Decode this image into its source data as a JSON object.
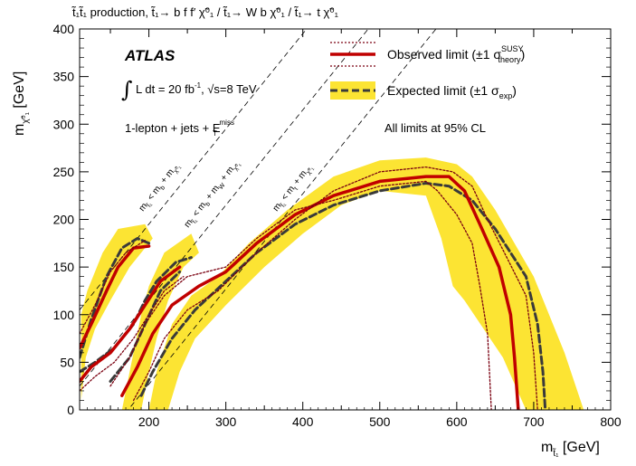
{
  "chart_data": {
    "type": "area",
    "title": "t̃₁t̃₁ production, t̃₁→ b f f′ χ̃⁰₁ / t̃₁→ W b χ̃⁰₁ / t̃₁→ t χ̃⁰₁",
    "experiment": "ATLAS",
    "luminosity_text": "L dt = 20 fb",
    "luminosity_sup": "-1",
    "energy_text": "√s=8 TeV",
    "selection_text": "1-lepton + jets + E",
    "selection_sub": "T",
    "selection_sup": "miss",
    "cl_text": "All limits at 95% CL",
    "xlabel": "m",
    "xlabel_sub": "t̃₁",
    "xlabel_unit": " [GeV]",
    "ylabel": "m",
    "ylabel_sub": "χ̃⁰₁",
    "ylabel_unit": " [GeV]",
    "xlim": [
      110,
      800
    ],
    "ylim": [
      0,
      400
    ],
    "xticks": [
      200,
      300,
      400,
      500,
      600,
      700,
      800
    ],
    "yticks": [
      0,
      50,
      100,
      150,
      200,
      250,
      300,
      350,
      400
    ],
    "legend_position": "top-right",
    "legend": [
      {
        "label": "Observed limit (±1 σ",
        "sup": "SUSY",
        "sub": "theory",
        "close": ")",
        "color": "#c00000"
      },
      {
        "label": "Expected limit (±1 σ",
        "sub": "exp",
        "close": ")",
        "color": "#3a3a3a",
        "band_color": "#fce433"
      }
    ],
    "kinematic_lines": [
      {
        "label": "m",
        "sub": "t̃₁",
        "text": " < m",
        "sub2": "b",
        "text2": " + m",
        "sub3": "χ̃⁰₁",
        "offset": 5
      },
      {
        "label": "m",
        "sub": "t̃₁",
        "text": " < m",
        "sub2": "b",
        "text2": " + m",
        "sub3": "W",
        "text3": " + m",
        "sub4": "χ̃⁰₁",
        "offset": 85
      },
      {
        "label": "m",
        "sub": "t̃₁",
        "text": " < m",
        "sub2": "t",
        "text2": " + m",
        "sub3": "χ̃⁰₁",
        "offset": 173
      }
    ],
    "series": [
      {
        "name": "Expected limit ±1σ band",
        "role": "band",
        "color": "#fce433",
        "polygons": [
          {
            "points": [
              [
                112,
                10
              ],
              [
                112,
                100
              ],
              [
                120,
                125
              ],
              [
                140,
                165
              ],
              [
                160,
                190
              ],
              [
                195,
                195
              ],
              [
                205,
                180
              ],
              [
                175,
                150
              ],
              [
                150,
                115
              ],
              [
                130,
                85
              ],
              [
                118,
                55
              ]
            ]
          },
          {
            "points": [
              [
                165,
                0
              ],
              [
                175,
                40
              ],
              [
                190,
                100
              ],
              [
                200,
                130
              ],
              [
                220,
                165
              ],
              [
                255,
                185
              ],
              [
                265,
                165
              ],
              [
                245,
                150
              ],
              [
                225,
                115
              ],
              [
                210,
                75
              ],
              [
                200,
                40
              ],
              [
                190,
                0
              ]
            ]
          },
          {
            "points": [
              [
                200,
                0
              ],
              [
                210,
                40
              ],
              [
                230,
                90
              ],
              [
                255,
                120
              ],
              [
                290,
                140
              ],
              [
                330,
                175
              ],
              [
                380,
                210
              ],
              [
                440,
                245
              ],
              [
                500,
                262
              ],
              [
                560,
                265
              ],
              [
                600,
                258
              ],
              [
                620,
                245
              ],
              [
                650,
                210
              ],
              [
                700,
                140
              ],
              [
                740,
                60
              ],
              [
                765,
                0
              ],
              [
                690,
                0
              ],
              [
                660,
                55
              ],
              [
                610,
                115
              ],
              [
                595,
                130
              ],
              [
                580,
                180
              ],
              [
                560,
                225
              ],
              [
                500,
                230
              ],
              [
                450,
                215
              ],
              [
                400,
                185
              ],
              [
                350,
                150
              ],
              [
                300,
                110
              ],
              [
                260,
                75
              ],
              [
                240,
                40
              ],
              [
                225,
                0
              ]
            ]
          }
        ]
      },
      {
        "name": "Expected limit",
        "role": "line",
        "color": "#3a3a3a",
        "dash": "8,4",
        "lines": [
          {
            "points": [
              [
                110,
                55
              ],
              [
                125,
                95
              ],
              [
                145,
                140
              ],
              [
                165,
                170
              ],
              [
                185,
                180
              ],
              [
                200,
                175
              ]
            ]
          },
          {
            "points": [
              [
                110,
                40
              ],
              [
                130,
                50
              ],
              [
                155,
                65
              ],
              [
                180,
                90
              ],
              [
                195,
                115
              ],
              [
                210,
                135
              ],
              [
                235,
                155
              ],
              [
                255,
                160
              ]
            ]
          },
          {
            "points": [
              [
                150,
                30
              ],
              [
                175,
                55
              ],
              [
                195,
                90
              ],
              [
                215,
                125
              ],
              [
                240,
                145
              ]
            ]
          },
          {
            "points": [
              [
                190,
                15
              ],
              [
                205,
                40
              ],
              [
                230,
                75
              ],
              [
                260,
                105
              ],
              [
                300,
                135
              ],
              [
                340,
                165
              ],
              [
                390,
                195
              ],
              [
                440,
                215
              ],
              [
                500,
                230
              ],
              [
                560,
                238
              ],
              [
                590,
                235
              ],
              [
                620,
                220
              ],
              [
                650,
                190
              ],
              [
                690,
                140
              ],
              [
                705,
                90
              ],
              [
                712,
                40
              ],
              [
                715,
                0
              ]
            ]
          }
        ]
      },
      {
        "name": "Observed limit",
        "role": "line",
        "color": "#c00000",
        "lines": [
          {
            "points": [
              [
                110,
                65
              ],
              [
                125,
                90
              ],
              [
                145,
                125
              ],
              [
                160,
                150
              ],
              [
                180,
                170
              ],
              [
                200,
                172
              ]
            ]
          },
          {
            "points": [
              [
                110,
                30
              ],
              [
                125,
                45
              ],
              [
                150,
                60
              ],
              [
                175,
                85
              ],
              [
                195,
                110
              ],
              [
                215,
                135
              ],
              [
                240,
                150
              ]
            ]
          },
          {
            "points": [
              [
                165,
                15
              ],
              [
                185,
                45
              ],
              [
                205,
                80
              ],
              [
                230,
                110
              ],
              [
                265,
                130
              ],
              [
                300,
                145
              ],
              [
                340,
                175
              ],
              [
                390,
                205
              ],
              [
                440,
                225
              ],
              [
                500,
                240
              ],
              [
                560,
                245
              ],
              [
                590,
                245
              ],
              [
                610,
                230
              ],
              [
                630,
                195
              ],
              [
                655,
                150
              ],
              [
                670,
                100
              ],
              [
                675,
                55
              ],
              [
                680,
                0
              ]
            ]
          }
        ]
      },
      {
        "name": "Observed limit ±1σ theory",
        "role": "line",
        "color": "#7a0010",
        "dash": "2,2",
        "lines": [
          {
            "points": [
              [
                110,
                80
              ],
              [
                130,
                110
              ],
              [
                150,
                145
              ],
              [
                170,
                165
              ],
              [
                195,
                178
              ]
            ]
          },
          {
            "points": [
              [
                110,
                20
              ],
              [
                130,
                35
              ],
              [
                155,
                50
              ],
              [
                180,
                75
              ],
              [
                200,
                100
              ],
              [
                220,
                125
              ],
              [
                245,
                140
              ]
            ]
          },
          {
            "points": [
              [
                180,
                10
              ],
              [
                200,
                40
              ],
              [
                220,
                75
              ],
              [
                250,
                105
              ],
              [
                290,
                125
              ],
              [
                340,
                165
              ],
              [
                390,
                200
              ],
              [
                440,
                230
              ],
              [
                500,
                250
              ],
              [
                560,
                255
              ],
              [
                595,
                250
              ],
              [
                620,
                235
              ],
              [
                640,
                200
              ],
              [
                665,
                160
              ],
              [
                690,
                120
              ],
              [
                700,
                60
              ],
              [
                705,
                0
              ]
            ]
          },
          {
            "points": [
              [
                150,
                25
              ],
              [
                175,
                55
              ],
              [
                195,
                90
              ],
              [
                220,
                120
              ],
              [
                250,
                140
              ],
              [
                300,
                150
              ],
              [
                340,
                180
              ],
              [
                390,
                210
              ],
              [
                440,
                220
              ],
              [
                500,
                235
              ],
              [
                560,
                240
              ],
              [
                575,
                230
              ],
              [
                600,
                205
              ],
              [
                620,
                175
              ],
              [
                630,
                130
              ],
              [
                640,
                80
              ],
              [
                645,
                0
              ]
            ]
          }
        ]
      }
    ]
  }
}
